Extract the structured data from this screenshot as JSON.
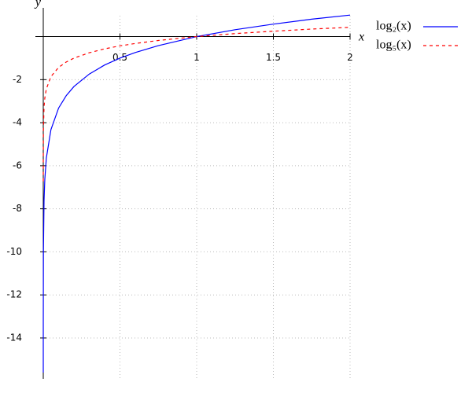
{
  "chart_data": {
    "type": "line",
    "x_label": "x",
    "y_label": "y",
    "x": [
      2e-05,
      0.0001,
      0.001,
      0.005,
      0.01,
      0.02,
      0.05,
      0.1,
      0.15,
      0.2,
      0.3,
      0.4,
      0.5,
      0.6,
      0.75,
      1,
      1.25,
      1.5,
      1.75,
      2
    ],
    "series": [
      {
        "name": "log₂(x)",
        "color": "#0000ff",
        "dash": false,
        "values": [
          -15.61,
          -13.29,
          -9.97,
          -7.64,
          -6.64,
          -5.64,
          -4.32,
          -3.32,
          -2.74,
          -2.32,
          -1.74,
          -1.32,
          -1,
          -0.74,
          -0.42,
          0,
          0.32,
          0.58,
          0.81,
          1
        ]
      },
      {
        "name": "log₅(x)",
        "color": "#ff0000",
        "dash": true,
        "values": [
          -6.72,
          -5.72,
          -4.29,
          -3.29,
          -2.86,
          -2.43,
          -1.86,
          -1.43,
          -1.18,
          -1.0,
          -0.75,
          -0.57,
          -0.43,
          -0.32,
          -0.18,
          0,
          0.14,
          0.25,
          0.35,
          0.43
        ]
      }
    ],
    "xlim": [
      0,
      2
    ],
    "ylim": [
      -15.9,
      1.7
    ],
    "xticks": [
      0.5,
      1,
      1.5,
      2
    ],
    "yticks": [
      -2,
      -4,
      -6,
      -8,
      -10,
      -12,
      -14
    ],
    "grid": true,
    "legend": "right"
  }
}
